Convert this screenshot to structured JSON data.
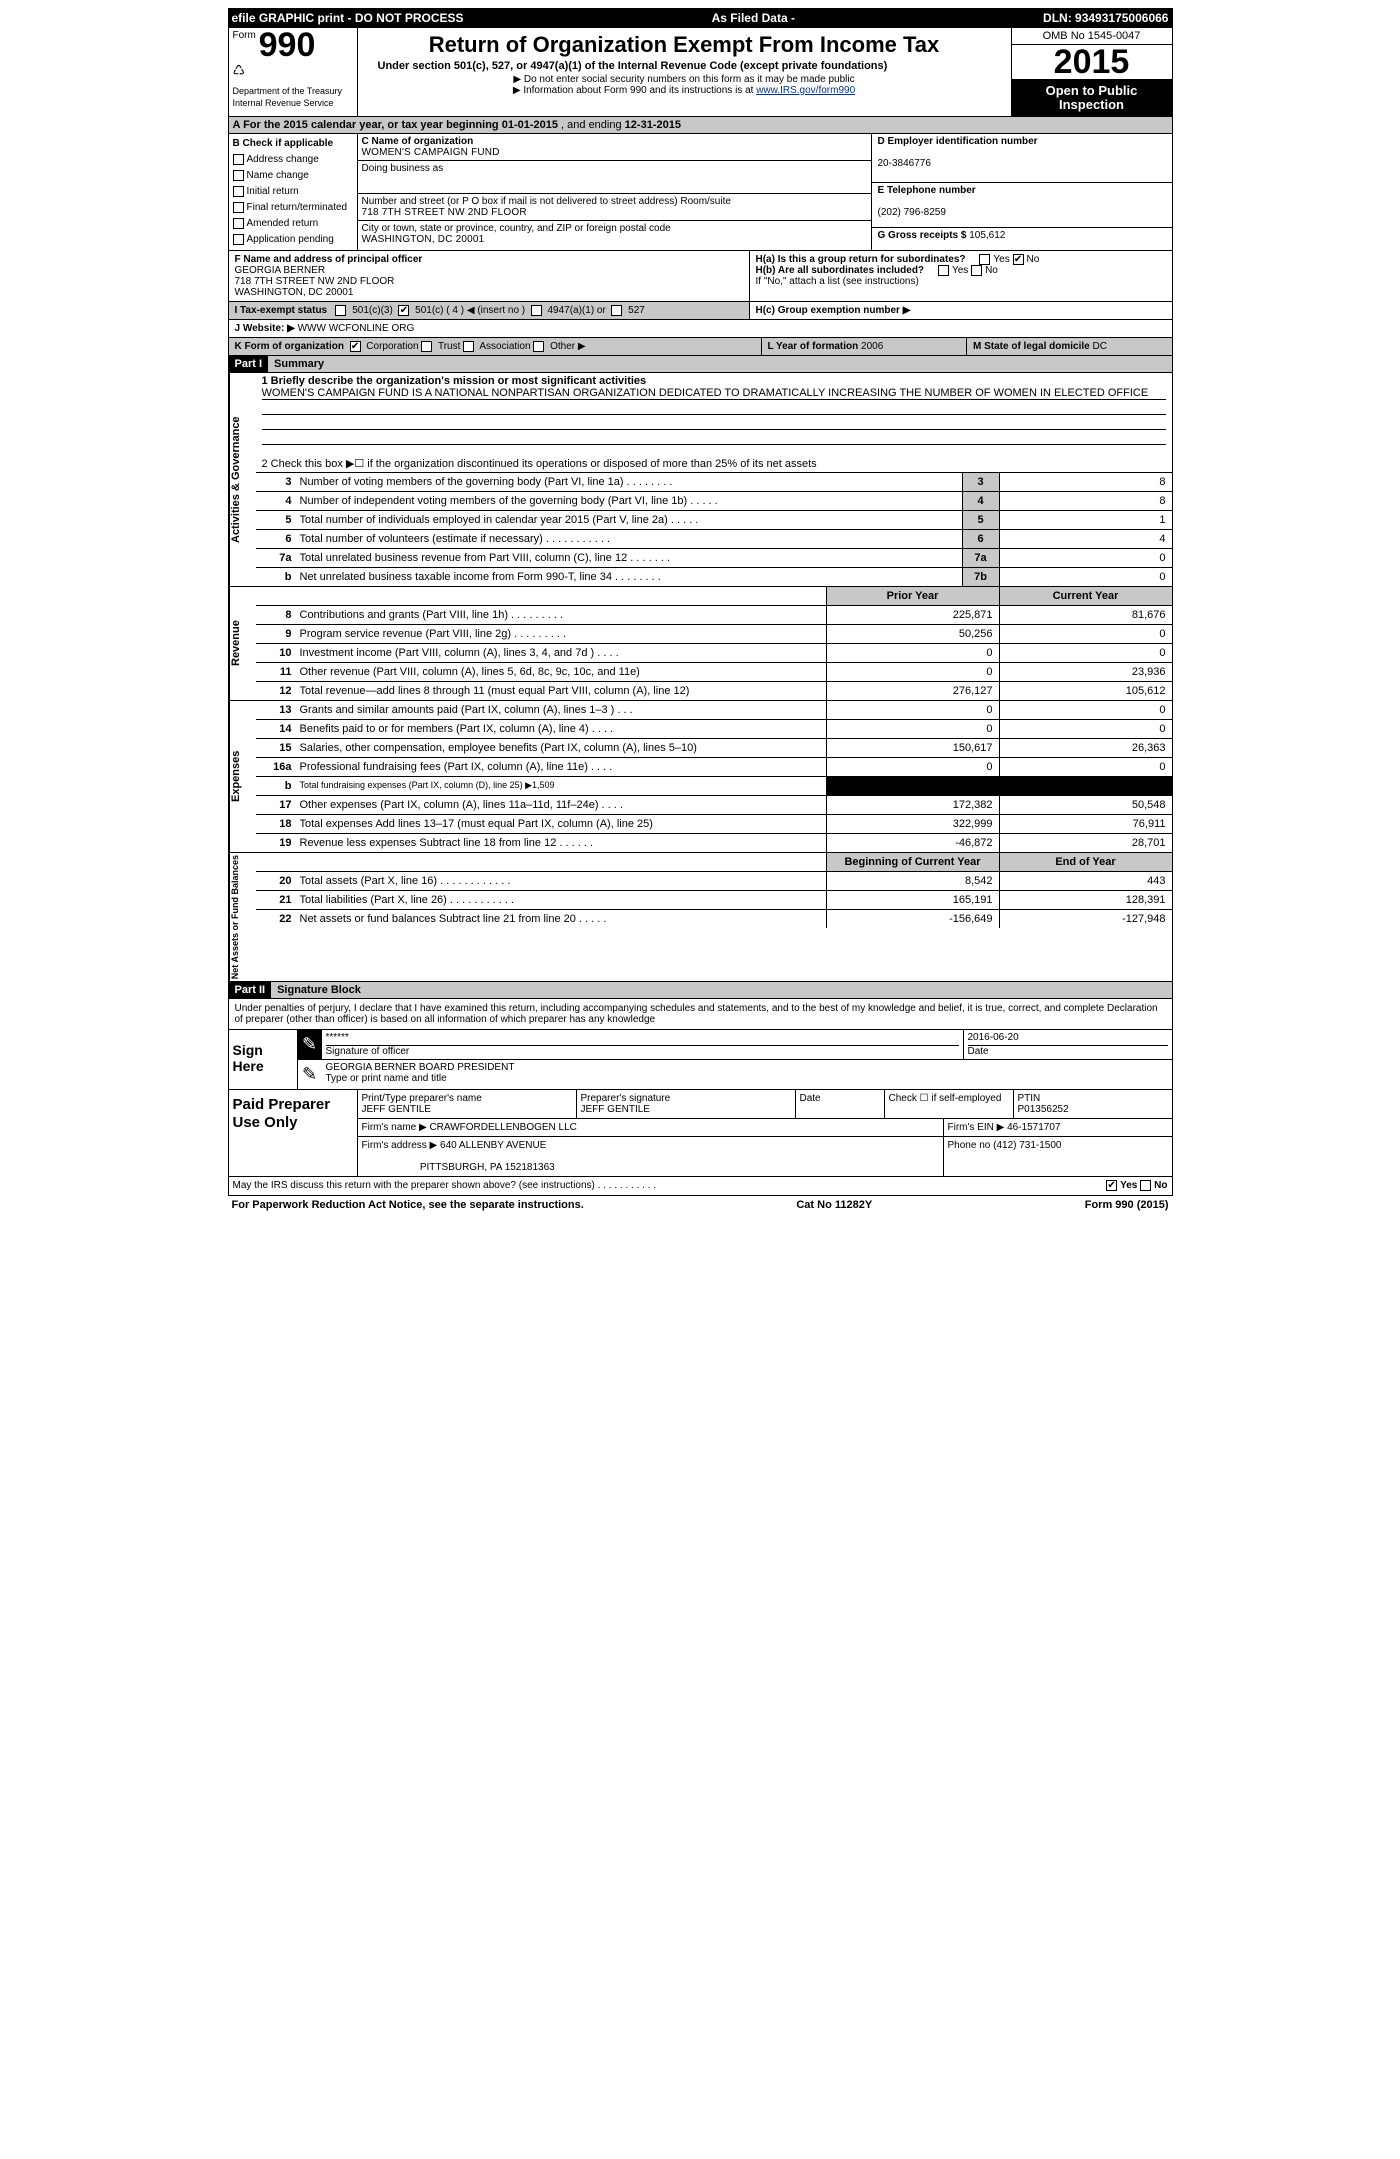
{
  "topbar": {
    "left": "efile GRAPHIC print - DO NOT PROCESS",
    "mid": "As Filed Data -",
    "right": "DLN: 93493175006066"
  },
  "hdr": {
    "form_prefix": "Form",
    "form_no": "990",
    "dept1": "Department of the Treasury",
    "dept2": "Internal Revenue Service",
    "title": "Return of Organization Exempt From Income Tax",
    "sub": "Under section 501(c), 527, or 4947(a)(1) of the Internal Revenue Code (except private foundations)",
    "note1": "▶ Do not enter social security numbers on this form as it may be made public",
    "note2_pre": "▶ Information about Form 990 and its instructions is at ",
    "note2_link": "www.IRS.gov/form990",
    "omb": "OMB No 1545-0047",
    "year": "2015",
    "open1": "Open to Public",
    "open2": "Inspection"
  },
  "A": {
    "pre": "A  For the 2015 calendar year, or tax year beginning ",
    "start": "01-01-2015",
    "mid": " , and ending ",
    "end": "12-31-2015"
  },
  "B": {
    "header": "B  Check if applicable",
    "items": [
      "Address change",
      "Name change",
      "Initial return",
      "Final return/terminated",
      "Amended return",
      "Application pending"
    ]
  },
  "C": {
    "name_lbl": "C Name of organization",
    "name": "WOMEN'S CAMPAIGN FUND",
    "dba_lbl": "Doing business as",
    "dba": "",
    "addr_lbl": "Number and street (or P O  box if mail is not delivered to street address)  Room/suite",
    "addr": "718 7TH STREET NW 2ND FLOOR",
    "city_lbl": "City or town, state or province, country, and ZIP or foreign postal code",
    "city": "WASHINGTON, DC  20001"
  },
  "right": {
    "D_lbl": "D Employer identification number",
    "D_val": "20-3846776",
    "E_lbl": "E Telephone number",
    "E_val": "(202) 796-8259",
    "G_lbl": "G Gross receipts $ ",
    "G_val": "105,612"
  },
  "F": {
    "lbl": "F   Name and address of principal officer",
    "l1": "GEORGIA BERNER",
    "l2": "718 7TH STREET NW 2ND FLOOR",
    "l3": "WASHINGTON, DC  20001"
  },
  "H": {
    "a_lbl": "H(a)  Is this a group return for subordinates?",
    "yes": "Yes",
    "no": "No",
    "b_lbl": "H(b)  Are all subordinates included?",
    "b_note": "If \"No,\" attach a list  (see instructions)",
    "c_lbl": "H(c)  Group exemption number ▶"
  },
  "I": {
    "pre": "I   Tax-exempt status",
    "opts": [
      "501(c)(3)",
      "501(c) ( 4 ) ◀ (insert no )",
      "4947(a)(1) or",
      "527"
    ]
  },
  "J": {
    "pre": "J   Website: ▶",
    "val": "  WWW WCFONLINE ORG"
  },
  "K": {
    "pre": "K Form of organization",
    "opts": [
      "Corporation",
      "Trust",
      "Association",
      "Other ▶"
    ],
    "L_lbl": "L Year of formation  ",
    "L_val": "2006",
    "M_lbl": "M State of legal domicile  ",
    "M_val": "DC"
  },
  "parts": {
    "p1": "Part I",
    "p1t": "Summary",
    "p2": "Part II",
    "p2t": "Signature Block"
  },
  "p1": {
    "vtab_top": "Activities & Governance",
    "l1_lbl": "1 Briefly describe the organization's mission or most significant activities",
    "l1_txt": "WOMEN'S CAMPAIGN FUND IS A NATIONAL NONPARTISAN ORGANIZATION DEDICATED TO DRAMATICALLY INCREASING THE NUMBER OF WOMEN IN ELECTED OFFICE",
    "l2": "2  Check this box ▶☐ if the organization discontinued its operations or disposed of more than 25% of its net assets",
    "rows_top": [
      {
        "ln": "3",
        "desc": "Number of voting members of the governing body (Part VI, line 1a)  .   .   .   .   .   .   .   .",
        "cell": "3",
        "amt": "8"
      },
      {
        "ln": "4",
        "desc": "Number of independent voting members of the governing body (Part VI, line 1b)  .   .   .   .   .",
        "cell": "4",
        "amt": "8"
      },
      {
        "ln": "5",
        "desc": "Total number of individuals employed in calendar year 2015 (Part V, line 2a)  .   .   .   .   .",
        "cell": "5",
        "amt": "1"
      },
      {
        "ln": "6",
        "desc": "Total number of volunteers (estimate if necessary)  .   .   .   .   .   .   .   .   .   .   .",
        "cell": "6",
        "amt": "4"
      },
      {
        "ln": "7a",
        "desc": "Total unrelated business revenue from Part VIII, column (C), line 12  .   .   .   .   .   .   .",
        "cell": "7a",
        "amt": "0"
      },
      {
        "ln": "b",
        "desc": "Net unrelated business taxable income from Form 990-T, line 34   .   .   .   .   .   .   .   .",
        "cell": "7b",
        "amt": "0"
      }
    ],
    "hdr_prior": "Prior Year",
    "hdr_curr": "Current Year",
    "vtab_rev": "Revenue",
    "rows_rev": [
      {
        "ln": "8",
        "desc": "Contributions and grants (Part VIII, line 1h)   .   .   .   .   .   .   .   .   .",
        "p": "225,871",
        "c": "81,676"
      },
      {
        "ln": "9",
        "desc": "Program service revenue (Part VIII, line 2g)   .   .   .   .   .   .   .   .   .",
        "p": "50,256",
        "c": "0"
      },
      {
        "ln": "10",
        "desc": "Investment income (Part VIII, column (A), lines 3, 4, and 7d )   .   .   .   .",
        "p": "0",
        "c": "0"
      },
      {
        "ln": "11",
        "desc": "Other revenue (Part VIII, column (A), lines 5, 6d, 8c, 9c, 10c, and 11e)",
        "p": "0",
        "c": "23,936"
      },
      {
        "ln": "12",
        "desc": "Total revenue—add lines 8 through 11 (must equal Part VIII, column (A), line 12)",
        "p": "276,127",
        "c": "105,612"
      }
    ],
    "vtab_exp": "Expenses",
    "rows_exp": [
      {
        "ln": "13",
        "desc": "Grants and similar amounts paid (Part IX, column (A), lines 1–3 )   .   .   .",
        "p": "0",
        "c": "0"
      },
      {
        "ln": "14",
        "desc": "Benefits paid to or for members (Part IX, column (A), line 4)   .   .   .   .",
        "p": "0",
        "c": "0"
      },
      {
        "ln": "15",
        "desc": "Salaries, other compensation, employee benefits (Part IX, column (A), lines 5–10)",
        "p": "150,617",
        "c": "26,363"
      },
      {
        "ln": "16a",
        "desc": "Professional fundraising fees (Part IX, column (A), line 11e)   .   .   .   .",
        "p": "0",
        "c": "0"
      },
      {
        "ln": "b",
        "desc": "Total fundraising expenses (Part IX, column (D), line 25) ▶1,509",
        "p": "BLACK",
        "c": "BLACK"
      },
      {
        "ln": "17",
        "desc": "Other expenses (Part IX, column (A), lines 11a–11d, 11f–24e)   .   .   .   .",
        "p": "172,382",
        "c": "50,548"
      },
      {
        "ln": "18",
        "desc": "Total expenses  Add lines 13–17 (must equal Part IX, column (A), line 25)",
        "p": "322,999",
        "c": "76,911"
      },
      {
        "ln": "19",
        "desc": "Revenue less expenses  Subtract line 18 from line 12   .   .   .   .   .   .",
        "p": "-46,872",
        "c": "28,701"
      }
    ],
    "vtab_net": "Net Assets or Fund Balances",
    "hdr_beg": "Beginning of Current Year",
    "hdr_end": "End of Year",
    "rows_net": [
      {
        "ln": "20",
        "desc": "Total assets (Part X, line 16)   .   .   .   .   .   .   .   .   .   .   .   .",
        "p": "8,542",
        "c": "443"
      },
      {
        "ln": "21",
        "desc": "Total liabilities (Part X, line 26)   .   .   .   .   .   .   .   .   .   .   .",
        "p": "165,191",
        "c": "128,391"
      },
      {
        "ln": "22",
        "desc": "Net assets or fund balances  Subtract line 21 from line 20   .   .   .   .   .",
        "p": "-156,649",
        "c": "-127,948"
      }
    ]
  },
  "p2": {
    "decl": "Under penalties of perjury, I declare that I have examined this return, including accompanying schedules and statements, and to the best of my knowledge and belief, it is true, correct, and complete  Declaration of preparer (other than officer) is based on all information of which preparer has any knowledge",
    "sign_here": "Sign Here",
    "stars": "******",
    "sig_lbl": "Signature of officer",
    "date_lbl": "Date",
    "date": "2016-06-20",
    "name": "GEORGIA BERNER  BOARD PRESIDENT",
    "name_lbl": "Type or print name and title",
    "paid": "Paid Preparer Use Only",
    "prep_name_lbl": "Print/Type preparer's name",
    "prep_name": "JEFF GENTILE",
    "prep_sig_lbl": "Preparer's signature",
    "prep_sig": "JEFF GENTILE",
    "prep_date_lbl": "Date",
    "self_lbl": "Check ☐ if self-employed",
    "ptin_lbl": "PTIN",
    "ptin": "P01356252",
    "firm_name_lbl": "Firm's name     ▶ ",
    "firm_name": "CRAWFORDELLENBOGEN LLC",
    "firm_ein_lbl": "Firm's EIN ▶ ",
    "firm_ein": "46-1571707",
    "firm_addr_lbl": "Firm's address ▶ ",
    "firm_addr1": "640 ALLENBY AVENUE",
    "firm_addr2": "PITTSBURGH, PA  152181363",
    "phone_lbl": "Phone no  ",
    "phone": "(412) 731-1500",
    "discuss": "May the IRS discuss this return with the preparer shown above? (see instructions)   .   .   .   .   .   .   .   .   .   .   . ",
    "yes": "Yes",
    "no": "No"
  },
  "foot": {
    "l": "For Paperwork Reduction Act Notice, see the separate instructions.",
    "m": "Cat No  11282Y",
    "r": "Form 990 (2015)"
  }
}
